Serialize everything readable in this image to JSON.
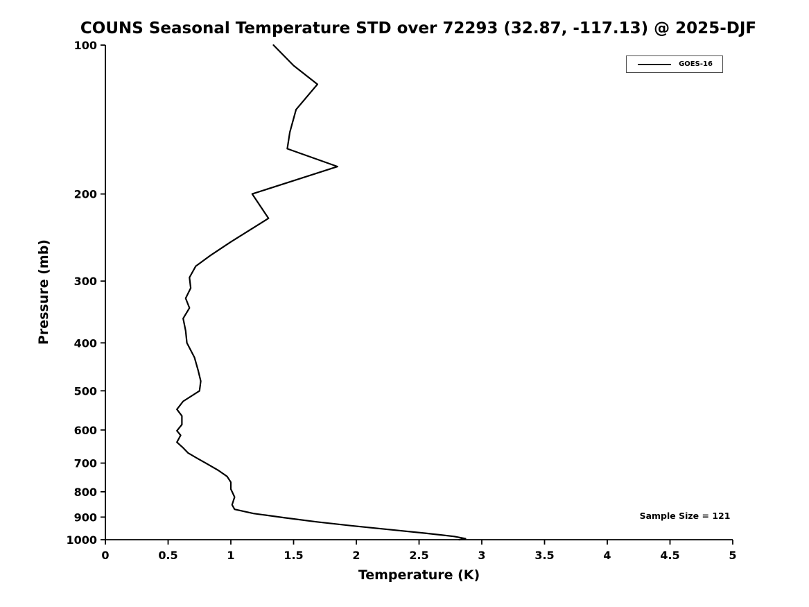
{
  "chart_data": {
    "type": "line",
    "title": "COUNS Seasonal Temperature STD over 72293 (32.87, -117.13) @ 2025-DJF",
    "xlabel": "Temperature (K)",
    "ylabel": "Pressure (mb)",
    "xlim": [
      0,
      5
    ],
    "ylim": [
      100,
      1000
    ],
    "y_scale": "log",
    "y_inverted": true,
    "grid": false,
    "x_ticks": [
      0,
      0.5,
      1,
      1.5,
      2,
      2.5,
      3,
      3.5,
      4,
      4.5,
      5
    ],
    "x_tick_labels": [
      "0",
      "0.5",
      "1",
      "1.5",
      "2",
      "2.5",
      "3",
      "3.5",
      "4",
      "4.5",
      "5"
    ],
    "y_ticks": [
      100,
      200,
      300,
      400,
      500,
      600,
      700,
      800,
      900,
      1000
    ],
    "y_tick_labels": [
      "100",
      "200",
      "300",
      "400",
      "500",
      "600",
      "700",
      "800",
      "900",
      "1000"
    ],
    "legend": {
      "position": "top-right",
      "entries": [
        {
          "label": "GOES-16",
          "color": "#000000"
        }
      ]
    },
    "annotation": "Sample Size = 121",
    "series": [
      {
        "name": "GOES-16",
        "color": "#000000",
        "points_format": "[temperature_K, pressure_mb]",
        "points": [
          [
            1.34,
            100
          ],
          [
            1.5,
            110
          ],
          [
            1.69,
            120
          ],
          [
            1.52,
            135
          ],
          [
            1.47,
            150
          ],
          [
            1.45,
            162
          ],
          [
            1.85,
            176
          ],
          [
            1.17,
            200
          ],
          [
            1.3,
            224
          ],
          [
            1.0,
            250
          ],
          [
            0.84,
            266
          ],
          [
            0.72,
            280
          ],
          [
            0.67,
            295
          ],
          [
            0.68,
            310
          ],
          [
            0.64,
            325
          ],
          [
            0.67,
            340
          ],
          [
            0.62,
            357
          ],
          [
            0.64,
            378
          ],
          [
            0.65,
            400
          ],
          [
            0.71,
            428
          ],
          [
            0.74,
            455
          ],
          [
            0.76,
            478
          ],
          [
            0.75,
            500
          ],
          [
            0.62,
            525
          ],
          [
            0.57,
            545
          ],
          [
            0.61,
            562
          ],
          [
            0.61,
            585
          ],
          [
            0.57,
            602
          ],
          [
            0.6,
            615
          ],
          [
            0.57,
            635
          ],
          [
            0.62,
            652
          ],
          [
            0.66,
            668
          ],
          [
            0.73,
            684
          ],
          [
            0.8,
            700
          ],
          [
            0.9,
            724
          ],
          [
            0.97,
            745
          ],
          [
            1.0,
            765
          ],
          [
            1.0,
            790
          ],
          [
            1.03,
            820
          ],
          [
            1.01,
            850
          ],
          [
            1.03,
            868
          ],
          [
            1.18,
            885
          ],
          [
            1.42,
            902
          ],
          [
            1.68,
            920
          ],
          [
            1.98,
            938
          ],
          [
            2.28,
            955
          ],
          [
            2.55,
            970
          ],
          [
            2.78,
            985
          ],
          [
            2.87,
            995
          ],
          [
            2.82,
            1000
          ]
        ]
      }
    ]
  }
}
